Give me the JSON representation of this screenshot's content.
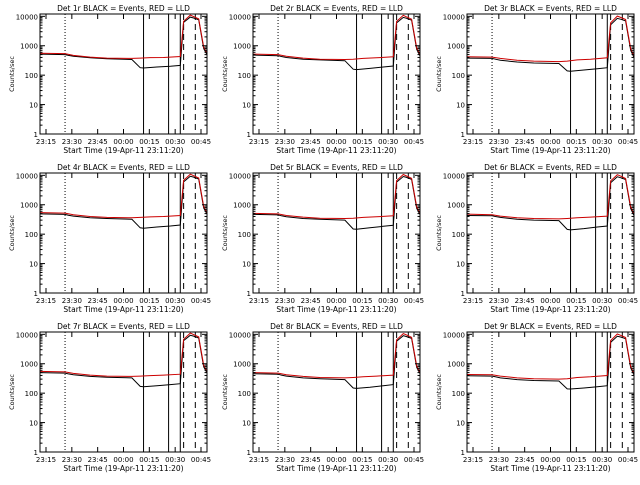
{
  "figure": {
    "background": "#ffffff",
    "axis_color": "#000000"
  },
  "chart_data": [
    {
      "type": "line",
      "title": "Det 1r BLACK = Events, RED = LLD",
      "xlabel": "Start Time (19-Apr-11 23:11:20)",
      "ylabel": "Counts/sec",
      "x_ticks": [
        "23:15",
        "23:30",
        "23:45",
        "00:00",
        "00:15",
        "00:30",
        "00:45"
      ],
      "x_range_min": [
        0,
        100
      ],
      "ylim": [
        1,
        12000
      ],
      "y_scale": "log",
      "y_ticks": [
        "1",
        "10",
        "100",
        "1000",
        "10000"
      ],
      "series": [
        {
          "name": "Events",
          "color": "#000000",
          "x": [
            0,
            15,
            17,
            20,
            30,
            40,
            55,
            60,
            62,
            70,
            78,
            84,
            86,
            90,
            92,
            95,
            98,
            100
          ],
          "y": [
            520,
            500,
            470,
            440,
            390,
            360,
            340,
            180,
            175,
            190,
            200,
            215,
            6200,
            9400,
            8800,
            7600,
            800,
            500
          ]
        },
        {
          "name": "LLD",
          "color": "#cc0000",
          "x": [
            0,
            15,
            20,
            30,
            40,
            55,
            60,
            66,
            74,
            84,
            86,
            90,
            92,
            95,
            98,
            100
          ],
          "y": [
            560,
            540,
            470,
            410,
            380,
            370,
            380,
            395,
            400,
            430,
            6800,
            11000,
            9800,
            8200,
            900,
            550
          ]
        }
      ],
      "vlines_solid": [
        62,
        77,
        84
      ],
      "vlines_dotted": [
        15
      ],
      "vlines_dashed": [
        86,
        93
      ]
    },
    {
      "type": "line",
      "title": "Det 2r BLACK = Events, RED = LLD",
      "xlabel": "Start Time (19-Apr-11 23:11:20)",
      "ylabel": "Counts/sec",
      "x_ticks": [
        "23:15",
        "23:30",
        "23:45",
        "00:00",
        "00:15",
        "00:30",
        "00:45"
      ],
      "x_range_min": [
        0,
        100
      ],
      "ylim": [
        1,
        12000
      ],
      "y_scale": "log",
      "y_ticks": [
        "1",
        "10",
        "100",
        "1000",
        "10000"
      ],
      "series": [
        {
          "name": "Events",
          "color": "#000000",
          "x": [
            0,
            15,
            17,
            20,
            30,
            40,
            55,
            60,
            62,
            70,
            78,
            84,
            86,
            90,
            92,
            95,
            98,
            100
          ],
          "y": [
            480,
            460,
            430,
            400,
            350,
            330,
            310,
            160,
            155,
            170,
            190,
            205,
            6000,
            9200,
            8600,
            7400,
            750,
            450
          ]
        },
        {
          "name": "LLD",
          "color": "#cc0000",
          "x": [
            0,
            15,
            20,
            30,
            40,
            55,
            60,
            66,
            74,
            84,
            86,
            90,
            92,
            95,
            98,
            100
          ],
          "y": [
            520,
            500,
            440,
            380,
            350,
            340,
            350,
            370,
            390,
            420,
            6700,
            10800,
            9600,
            8000,
            850,
            500
          ]
        }
      ],
      "vlines_solid": [
        62,
        77,
        84
      ],
      "vlines_dotted": [
        15
      ],
      "vlines_dashed": [
        86,
        93
      ]
    },
    {
      "type": "line",
      "title": "Det 3r BLACK = Events, RED = LLD",
      "xlabel": "Start Time (19-Apr-11 23:11:20)",
      "ylabel": "Counts/sec",
      "x_ticks": [
        "23:15",
        "23:30",
        "23:45",
        "00:00",
        "00:15",
        "00:30",
        "00:45"
      ],
      "x_range_min": [
        0,
        100
      ],
      "ylim": [
        1,
        12000
      ],
      "y_scale": "log",
      "y_ticks": [
        "1",
        "10",
        "100",
        "1000",
        "10000"
      ],
      "series": [
        {
          "name": "Events",
          "color": "#000000",
          "x": [
            0,
            15,
            17,
            20,
            30,
            40,
            55,
            60,
            62,
            70,
            78,
            84,
            86,
            90,
            92,
            95,
            98,
            100
          ],
          "y": [
            380,
            370,
            350,
            320,
            280,
            260,
            250,
            140,
            135,
            150,
            165,
            180,
            5200,
            8500,
            8000,
            7000,
            700,
            400
          ]
        },
        {
          "name": "LLD",
          "color": "#cc0000",
          "x": [
            0,
            15,
            20,
            30,
            40,
            55,
            60,
            66,
            74,
            84,
            86,
            90,
            92,
            95,
            98,
            100
          ],
          "y": [
            420,
            410,
            370,
            320,
            300,
            290,
            300,
            330,
            350,
            390,
            6000,
            10200,
            9200,
            7800,
            800,
            450
          ]
        }
      ],
      "vlines_solid": [
        62,
        77,
        84
      ],
      "vlines_dotted": [
        15
      ],
      "vlines_dashed": [
        86,
        93
      ]
    },
    {
      "type": "line",
      "title": "Det 4r BLACK = Events, RED = LLD",
      "xlabel": "Start Time (19-Apr-11 23:11:20)",
      "ylabel": "Counts/sec",
      "x_ticks": [
        "23:15",
        "23:30",
        "23:45",
        "00:00",
        "00:15",
        "00:30",
        "00:45"
      ],
      "x_range_min": [
        0,
        100
      ],
      "ylim": [
        1,
        12000
      ],
      "y_scale": "log",
      "y_ticks": [
        "1",
        "10",
        "100",
        "1000",
        "10000"
      ],
      "series": [
        {
          "name": "Events",
          "color": "#000000",
          "x": [
            0,
            15,
            17,
            20,
            30,
            40,
            55,
            60,
            62,
            70,
            78,
            84,
            86,
            90,
            92,
            95,
            98,
            100
          ],
          "y": [
            490,
            470,
            440,
            410,
            360,
            340,
            320,
            165,
            160,
            175,
            190,
            205,
            6000,
            9300,
            8700,
            7500,
            780,
            480
          ]
        },
        {
          "name": "LLD",
          "color": "#cc0000",
          "x": [
            0,
            15,
            20,
            30,
            40,
            55,
            60,
            66,
            74,
            84,
            86,
            90,
            92,
            95,
            98,
            100
          ],
          "y": [
            540,
            520,
            460,
            400,
            370,
            360,
            370,
            385,
            400,
            430,
            6700,
            10900,
            9700,
            8100,
            880,
            530
          ]
        }
      ],
      "vlines_solid": [
        62,
        77,
        84
      ],
      "vlines_dotted": [
        15
      ],
      "vlines_dashed": [
        86,
        93
      ]
    },
    {
      "type": "line",
      "title": "Det 5r BLACK = Events, RED = LLD",
      "xlabel": "Start Time (19-Apr-11 23:11:20)",
      "ylabel": "Counts/sec",
      "x_ticks": [
        "23:15",
        "23:30",
        "23:45",
        "00:00",
        "00:15",
        "00:30",
        "00:45"
      ],
      "x_range_min": [
        0,
        100
      ],
      "ylim": [
        1,
        12000
      ],
      "y_scale": "log",
      "y_ticks": [
        "1",
        "10",
        "100",
        "1000",
        "10000"
      ],
      "series": [
        {
          "name": "Events",
          "color": "#000000",
          "x": [
            0,
            15,
            17,
            20,
            30,
            40,
            55,
            60,
            62,
            70,
            78,
            84,
            86,
            90,
            92,
            95,
            98,
            100
          ],
          "y": [
            470,
            450,
            420,
            390,
            340,
            320,
            300,
            150,
            148,
            165,
            185,
            200,
            5900,
            9100,
            8500,
            7300,
            760,
            460
          ]
        },
        {
          "name": "LLD",
          "color": "#cc0000",
          "x": [
            0,
            15,
            20,
            30,
            40,
            55,
            60,
            66,
            74,
            84,
            86,
            90,
            92,
            95,
            98,
            100
          ],
          "y": [
            510,
            490,
            430,
            380,
            350,
            340,
            350,
            370,
            390,
            420,
            6600,
            10700,
            9500,
            7900,
            860,
            510
          ]
        }
      ],
      "vlines_solid": [
        62,
        77,
        84
      ],
      "vlines_dotted": [
        15
      ],
      "vlines_dashed": [
        86,
        93
      ]
    },
    {
      "type": "line",
      "title": "Det 6r BLACK = Events, RED = LLD",
      "xlabel": "Start Time (19-Apr-11 23:11:20)",
      "ylabel": "Counts/sec",
      "x_ticks": [
        "23:15",
        "23:30",
        "23:45",
        "00:00",
        "00:15",
        "00:30",
        "00:45"
      ],
      "x_range_min": [
        0,
        100
      ],
      "ylim": [
        1,
        12000
      ],
      "y_scale": "log",
      "y_ticks": [
        "1",
        "10",
        "100",
        "1000",
        "10000"
      ],
      "series": [
        {
          "name": "Events",
          "color": "#000000",
          "x": [
            0,
            15,
            17,
            20,
            30,
            40,
            55,
            60,
            62,
            70,
            78,
            84,
            86,
            90,
            92,
            95,
            98,
            100
          ],
          "y": [
            430,
            420,
            400,
            370,
            320,
            300,
            290,
            145,
            140,
            155,
            175,
            190,
            5600,
            8900,
            8300,
            7200,
            740,
            430
          ]
        },
        {
          "name": "LLD",
          "color": "#cc0000",
          "x": [
            0,
            15,
            20,
            30,
            40,
            55,
            60,
            66,
            74,
            84,
            86,
            90,
            92,
            95,
            98,
            100
          ],
          "y": [
            480,
            460,
            410,
            360,
            340,
            330,
            340,
            360,
            380,
            410,
            6400,
            10500,
            9400,
            7800,
            840,
            490
          ]
        }
      ],
      "vlines_solid": [
        62,
        77,
        84
      ],
      "vlines_dotted": [
        15
      ],
      "vlines_dashed": [
        86,
        93
      ]
    },
    {
      "type": "line",
      "title": "Det 7r BLACK = Events, RED = LLD",
      "xlabel": "Start Time (19-Apr-11 23:11:20)",
      "ylabel": "Counts/sec",
      "x_ticks": [
        "23:15",
        "23:30",
        "23:45",
        "00:00",
        "00:15",
        "00:30",
        "00:45"
      ],
      "x_range_min": [
        0,
        100
      ],
      "ylim": [
        1,
        12000
      ],
      "y_scale": "log",
      "y_ticks": [
        "1",
        "10",
        "100",
        "1000",
        "10000"
      ],
      "series": [
        {
          "name": "Events",
          "color": "#000000",
          "x": [
            0,
            15,
            17,
            20,
            30,
            40,
            55,
            60,
            62,
            70,
            78,
            84,
            86,
            90,
            92,
            95,
            98,
            100
          ],
          "y": [
            500,
            480,
            450,
            420,
            370,
            350,
            330,
            170,
            165,
            180,
            195,
            210,
            6100,
            9300,
            8700,
            7500,
            790,
            490
          ]
        },
        {
          "name": "LLD",
          "color": "#cc0000",
          "x": [
            0,
            15,
            20,
            30,
            40,
            55,
            60,
            66,
            74,
            84,
            86,
            90,
            92,
            95,
            98,
            100
          ],
          "y": [
            550,
            530,
            470,
            410,
            380,
            370,
            380,
            395,
            410,
            440,
            6800,
            11000,
            9800,
            8200,
            890,
            540
          ]
        }
      ],
      "vlines_solid": [
        62,
        77,
        84
      ],
      "vlines_dotted": [
        15
      ],
      "vlines_dashed": [
        86,
        93
      ]
    },
    {
      "type": "line",
      "title": "Det 8r BLACK = Events, RED = LLD",
      "xlabel": "Start Time (19-Apr-11 23:11:20)",
      "ylabel": "Counts/sec",
      "x_ticks": [
        "23:15",
        "23:30",
        "23:45",
        "00:00",
        "00:15",
        "00:30",
        "00:45"
      ],
      "x_range_min": [
        0,
        100
      ],
      "ylim": [
        1,
        12000
      ],
      "y_scale": "log",
      "y_ticks": [
        "1",
        "10",
        "100",
        "1000",
        "10000"
      ],
      "series": [
        {
          "name": "Events",
          "color": "#000000",
          "x": [
            0,
            15,
            17,
            20,
            30,
            40,
            55,
            60,
            62,
            70,
            78,
            84,
            86,
            90,
            92,
            95,
            98,
            100
          ],
          "y": [
            460,
            440,
            410,
            380,
            330,
            310,
            290,
            150,
            145,
            160,
            180,
            195,
            5800,
            9000,
            8400,
            7300,
            760,
            460
          ]
        },
        {
          "name": "LLD",
          "color": "#cc0000",
          "x": [
            0,
            15,
            20,
            30,
            40,
            55,
            60,
            66,
            74,
            84,
            86,
            90,
            92,
            95,
            98,
            100
          ],
          "y": [
            500,
            480,
            420,
            370,
            340,
            330,
            340,
            360,
            380,
            410,
            6500,
            10600,
            9500,
            7900,
            850,
            500
          ]
        }
      ],
      "vlines_solid": [
        62,
        77,
        84
      ],
      "vlines_dotted": [
        15
      ],
      "vlines_dashed": [
        86,
        93
      ]
    },
    {
      "type": "line",
      "title": "Det 9r BLACK = Events, RED = LLD",
      "xlabel": "Start Time (19-Apr-11 23:11:20)",
      "ylabel": "Counts/sec",
      "x_ticks": [
        "23:15",
        "23:30",
        "23:45",
        "00:00",
        "00:15",
        "00:30",
        "00:45"
      ],
      "x_range_min": [
        0,
        100
      ],
      "ylim": [
        1,
        12000
      ],
      "y_scale": "log",
      "y_ticks": [
        "1",
        "10",
        "100",
        "1000",
        "10000"
      ],
      "series": [
        {
          "name": "Events",
          "color": "#000000",
          "x": [
            0,
            15,
            17,
            20,
            30,
            40,
            55,
            60,
            62,
            70,
            78,
            84,
            86,
            90,
            92,
            95,
            98,
            100
          ],
          "y": [
            390,
            380,
            360,
            330,
            290,
            270,
            260,
            140,
            138,
            150,
            165,
            180,
            5300,
            8600,
            8100,
            7100,
            720,
            410
          ]
        },
        {
          "name": "LLD",
          "color": "#cc0000",
          "x": [
            0,
            15,
            20,
            30,
            40,
            55,
            60,
            66,
            74,
            84,
            86,
            90,
            92,
            95,
            98,
            100
          ],
          "y": [
            430,
            420,
            380,
            330,
            310,
            300,
            310,
            340,
            360,
            400,
            6100,
            10300,
            9300,
            7800,
            810,
            460
          ]
        }
      ],
      "vlines_solid": [
        62,
        77,
        84
      ],
      "vlines_dotted": [
        15
      ],
      "vlines_dashed": [
        86,
        93
      ]
    }
  ]
}
